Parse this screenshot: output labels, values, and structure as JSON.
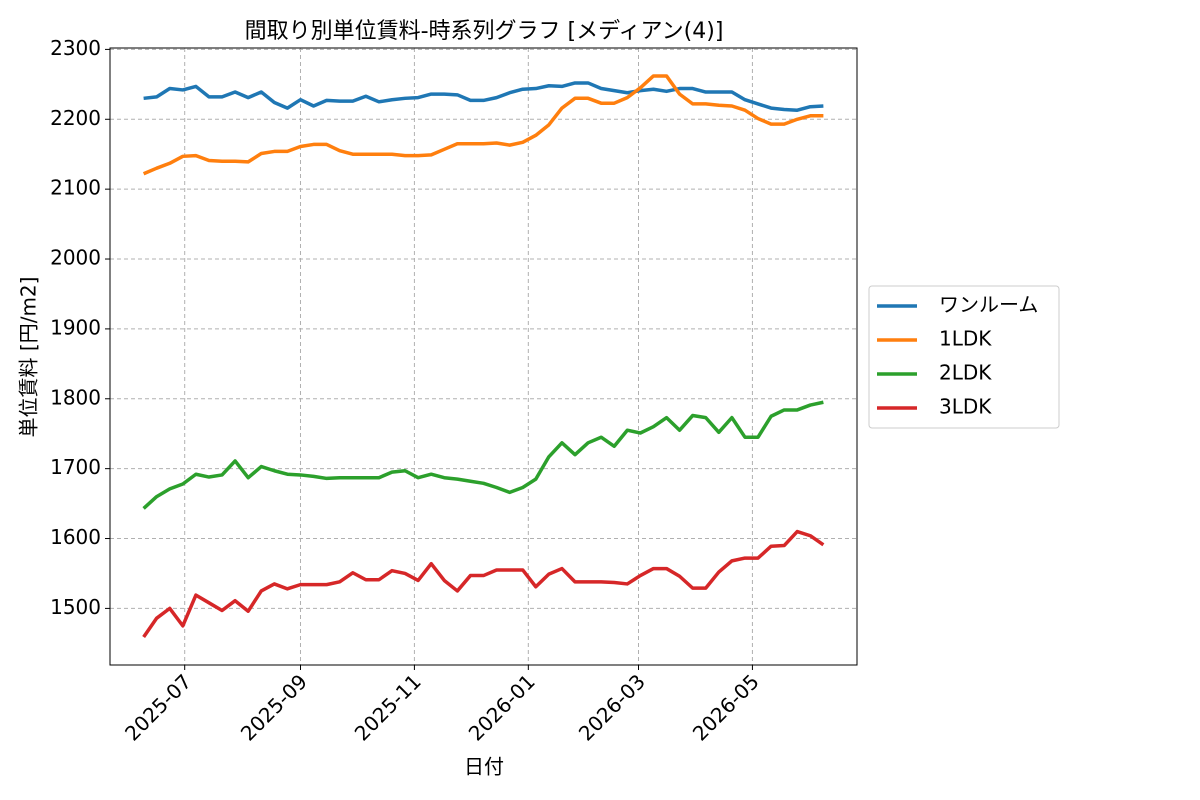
{
  "chart_data": {
    "type": "line",
    "title": "間取り別単位賃料-時系列グラフ [メディアン(4)]",
    "xlabel": "日付",
    "ylabel": "単位賃料 [円/m2]",
    "x": [
      "2025-06-09",
      "2025-06-16",
      "2025-06-23",
      "2025-06-30",
      "2025-07-07",
      "2025-07-14",
      "2025-07-21",
      "2025-07-28",
      "2025-08-04",
      "2025-08-11",
      "2025-08-18",
      "2025-08-25",
      "2025-09-01",
      "2025-09-08",
      "2025-09-15",
      "2025-09-22",
      "2025-09-29",
      "2025-10-06",
      "2025-10-13",
      "2025-10-20",
      "2025-10-27",
      "2025-11-03",
      "2025-11-10",
      "2025-11-17",
      "2025-11-24",
      "2025-12-01",
      "2025-12-08",
      "2025-12-15",
      "2025-12-22",
      "2025-12-29",
      "2026-01-05",
      "2026-01-12",
      "2026-01-19",
      "2026-01-26",
      "2026-02-02",
      "2026-02-09",
      "2026-02-16",
      "2026-02-23",
      "2026-03-02",
      "2026-03-09",
      "2026-03-16",
      "2026-03-23",
      "2026-03-30",
      "2026-04-06",
      "2026-04-13",
      "2026-04-20",
      "2026-04-27",
      "2026-05-04",
      "2026-05-11",
      "2026-05-18",
      "2026-05-25",
      "2026-06-01",
      "2026-06-08"
    ],
    "series": [
      {
        "name": "ワンルーム",
        "color": "#1f77b4",
        "values": [
          2230,
          2232,
          2244,
          2242,
          2247,
          2232,
          2232,
          2239,
          2231,
          2239,
          2224,
          2216,
          2228,
          2219,
          2227,
          2226,
          2226,
          2233,
          2225,
          2228,
          2230,
          2231,
          2236,
          2236,
          2235,
          2227,
          2227,
          2231,
          2238,
          2243,
          2244,
          2248,
          2247,
          2252,
          2252,
          2244,
          2241,
          2238,
          2241,
          2243,
          2240,
          2244,
          2244,
          2239,
          2239,
          2239,
          2228,
          2222,
          2216,
          2214,
          2213,
          2218,
          2219
        ]
      },
      {
        "name": "1LDK",
        "color": "#ff7f0e",
        "values": [
          2122,
          2130,
          2137,
          2147,
          2148,
          2141,
          2140,
          2140,
          2139,
          2151,
          2154,
          2154,
          2161,
          2164,
          2164,
          2155,
          2150,
          2150,
          2150,
          2150,
          2148,
          2148,
          2149,
          2157,
          2165,
          2165,
          2165,
          2166,
          2163,
          2167,
          2177,
          2192,
          2216,
          2230,
          2230,
          2223,
          2223,
          2231,
          2245,
          2262,
          2262,
          2236,
          2222,
          2222,
          2220,
          2219,
          2213,
          2201,
          2193,
          2193,
          2200,
          2205,
          2205
        ]
      },
      {
        "name": "2LDK",
        "color": "#2ca02c",
        "values": [
          1643,
          1660,
          1671,
          1678,
          1692,
          1688,
          1691,
          1711,
          1687,
          1703,
          1697,
          1692,
          1691,
          1689,
          1686,
          1687,
          1687,
          1687,
          1687,
          1695,
          1697,
          1687,
          1692,
          1687,
          1685,
          1682,
          1679,
          1673,
          1666,
          1673,
          1685,
          1717,
          1737,
          1720,
          1737,
          1745,
          1732,
          1755,
          1751,
          1760,
          1773,
          1755,
          1776,
          1773,
          1752,
          1773,
          1745,
          1745,
          1775,
          1784,
          1784,
          1791,
          1795
        ]
      },
      {
        "name": "3LDK",
        "color": "#d62728",
        "values": [
          1459,
          1486,
          1500,
          1475,
          1519,
          1508,
          1497,
          1511,
          1496,
          1525,
          1535,
          1528,
          1534,
          1534,
          1534,
          1538,
          1551,
          1541,
          1541,
          1554,
          1550,
          1540,
          1564,
          1540,
          1525,
          1547,
          1547,
          1555,
          1555,
          1555,
          1531,
          1549,
          1557,
          1538,
          1538,
          1538,
          1537,
          1535,
          1547,
          1557,
          1557,
          1546,
          1529,
          1529,
          1552,
          1568,
          1572,
          1572,
          1589,
          1590,
          1610,
          1604,
          1591
        ]
      }
    ],
    "xlim": [
      "2025-05-22",
      "2026-06-26"
    ],
    "xticks": [
      {
        "value": "2025-07-01",
        "label": "2025-07"
      },
      {
        "value": "2025-09-01",
        "label": "2025-09"
      },
      {
        "value": "2025-11-01",
        "label": "2025-11"
      },
      {
        "value": "2026-01-01",
        "label": "2026-01"
      },
      {
        "value": "2026-03-01",
        "label": "2026-03"
      },
      {
        "value": "2026-05-01",
        "label": "2026-05"
      }
    ],
    "ylim": [
      1419,
      2302
    ],
    "yticks": [
      1500,
      1600,
      1700,
      1800,
      1900,
      2000,
      2100,
      2200,
      2300
    ],
    "grid": true,
    "legend": "outside right"
  }
}
